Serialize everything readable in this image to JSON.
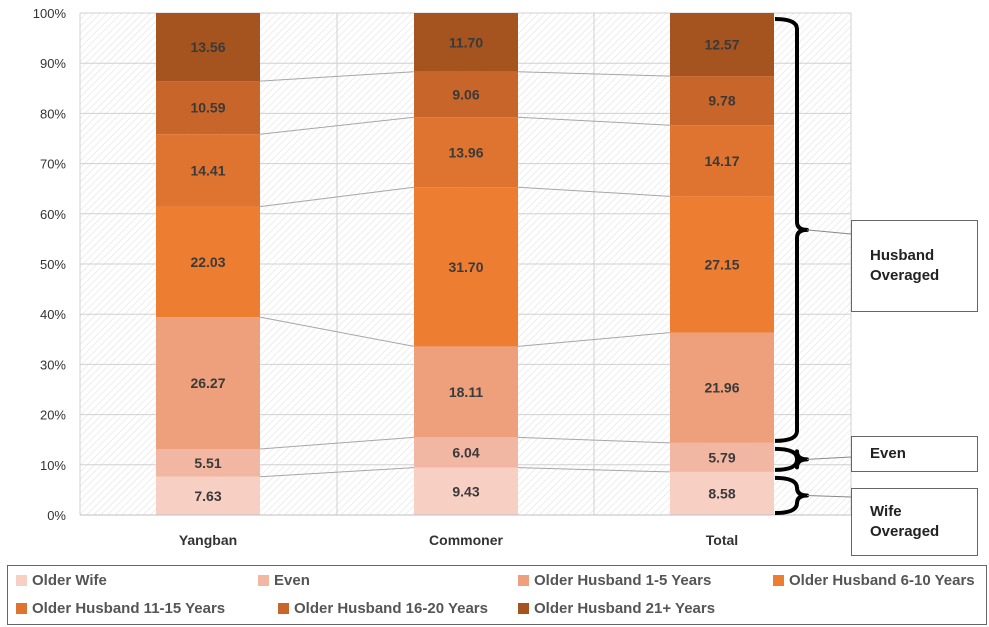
{
  "chart_data": {
    "type": "bar",
    "stacked": "percent",
    "categories": [
      "Yangban",
      "Commoner",
      "Total"
    ],
    "series": [
      {
        "name": "Older Wife",
        "color": "#f7cfc3",
        "values": [
          7.63,
          9.43,
          8.58
        ]
      },
      {
        "name": "Even",
        "color": "#f2b7a3",
        "values": [
          5.51,
          6.04,
          5.79
        ]
      },
      {
        "name": "Older Husband 1-5 Years",
        "color": "#ee9f7b",
        "values": [
          26.27,
          18.11,
          21.96
        ]
      },
      {
        "name": "Older Husband 6-10 Years",
        "color": "#ed7d31",
        "values": [
          22.03,
          31.7,
          27.15
        ]
      },
      {
        "name": "Older Husband 11-15 Years",
        "color": "#df7431",
        "values": [
          14.41,
          13.96,
          14.17
        ]
      },
      {
        "name": "Older Husband 16-20 Years",
        "color": "#c8652a",
        "values": [
          10.59,
          9.06,
          9.78
        ]
      },
      {
        "name": "Older Husband 21+ Years",
        "color": "#a5531f",
        "values": [
          13.56,
          11.7,
          12.57
        ]
      }
    ],
    "data_labels": [
      [
        "7.63",
        "5.51",
        "26.27",
        "22.03",
        "14.41",
        "10.59",
        "13.56"
      ],
      [
        "9.43",
        "6.04",
        "18.11",
        "31.70",
        "13.96",
        "9.06",
        "11.70"
      ],
      [
        "8.58",
        "5.79",
        "21.96",
        "27.15",
        "14.17",
        "9.78",
        "12.57"
      ]
    ],
    "yticks": [
      "0%",
      "10%",
      "20%",
      "30%",
      "40%",
      "50%",
      "60%",
      "70%",
      "80%",
      "90%",
      "100%"
    ],
    "ylim": [
      0,
      100
    ],
    "grid": true,
    "legend_position": "bottom",
    "annotations": [
      {
        "text": "Husband\nOveraged",
        "lines": [
          "Husband",
          "Overaged"
        ],
        "from_series": 2,
        "to_series": 6
      },
      {
        "text": "Even",
        "lines": [
          "Even"
        ],
        "from_series": 1,
        "to_series": 1
      },
      {
        "text": "Wife\nOveraged",
        "lines": [
          "Wife",
          "Overaged"
        ],
        "from_series": 0,
        "to_series": 0
      }
    ]
  }
}
